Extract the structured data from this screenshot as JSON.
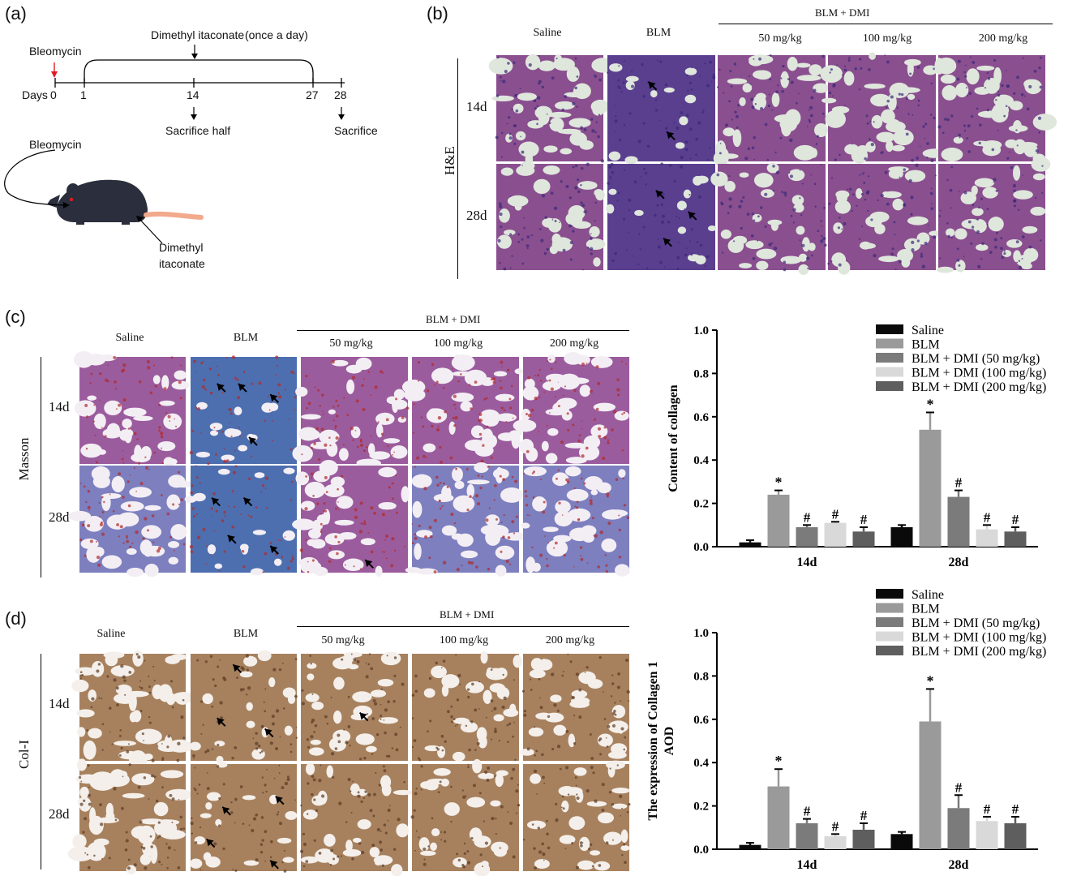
{
  "panel_a": {
    "letter": "(a)",
    "bleomycin_top": "Bleomycin",
    "dmi_label": "Dimethyl itaconate",
    "once_a_day": "(once a day)",
    "days_label": "Days",
    "ticks": [
      "0",
      "1",
      "14",
      "27",
      "28"
    ],
    "sacrifice_half": "Sacrifice half",
    "sacrifice": "Sacrifice",
    "bleomycin_mouse": "Bleomycin",
    "dmi_mouse_line1": "Dimethyl",
    "dmi_mouse_line2": "itaconate"
  },
  "panel_b": {
    "letter": "(b)",
    "group_header": "BLM + DMI",
    "columns": [
      "Saline",
      "BLM",
      "50 mg/kg",
      "100 mg/kg",
      "200 mg/kg"
    ],
    "rows": [
      "14d",
      "28d"
    ],
    "stain": "H&E"
  },
  "panel_c": {
    "letter": "(c)",
    "group_header": "BLM + DMI",
    "columns": [
      "Saline",
      "BLM",
      "50 mg/kg",
      "100 mg/kg",
      "200 mg/kg"
    ],
    "rows": [
      "14d",
      "28d"
    ],
    "stain": "Masson"
  },
  "panel_d": {
    "letter": "(d)",
    "group_header": "BLM + DMI",
    "columns": [
      "Saline",
      "BLM",
      "50 mg/kg",
      "100 mg/kg",
      "200 mg/kg"
    ],
    "rows": [
      "14d",
      "28d"
    ],
    "stain": "Col-I"
  },
  "colors": {
    "he_bg": "#dfe6dc",
    "he_tissue": "#8a4f8f",
    "he_dense": "#5a3f8f",
    "masson_bg": "#f3eef4",
    "masson_tissue": "#9b5c9e",
    "masson_blue": "#4d6fb0",
    "col_bg": "#f4efea",
    "col_tissue": "#a7815e",
    "series": [
      "#0a0a0a",
      "#9a9a9a",
      "#7b7b7b",
      "#d9d9d9",
      "#5e5e5e"
    ]
  },
  "chart_data": [
    {
      "type": "bar",
      "ylabel": "Content of collagen",
      "categories": [
        "14d",
        "28d"
      ],
      "ylim": [
        0,
        1.0
      ],
      "yticks": [
        "0.0",
        "0.2",
        "0.4",
        "0.6",
        "0.8",
        "1.0"
      ],
      "legend_position": "top-right",
      "series": [
        {
          "name": "Saline",
          "values": [
            0.02,
            0.09
          ],
          "errors": [
            0.01,
            0.01
          ],
          "marks": [
            "",
            ""
          ]
        },
        {
          "name": "BLM",
          "values": [
            0.24,
            0.54
          ],
          "errors": [
            0.02,
            0.08
          ],
          "marks": [
            "*",
            "*"
          ]
        },
        {
          "name": "BLM + DMI (50 mg/kg)",
          "values": [
            0.09,
            0.23
          ],
          "errors": [
            0.01,
            0.03
          ],
          "marks": [
            "#",
            "#"
          ]
        },
        {
          "name": "BLM + DMI (100 mg/kg)",
          "values": [
            0.11,
            0.08
          ],
          "errors": [
            0.005,
            0.02
          ],
          "marks": [
            "#",
            "#"
          ]
        },
        {
          "name": "BLM + DMI (200 mg/kg)",
          "values": [
            0.07,
            0.07
          ],
          "errors": [
            0.02,
            0.02
          ],
          "marks": [
            "#",
            "#"
          ]
        }
      ]
    },
    {
      "type": "bar",
      "ylabel": "The expression of Collagen 1",
      "ylabel2": "AOD",
      "categories": [
        "14d",
        "28d"
      ],
      "ylim": [
        0,
        1.0
      ],
      "yticks": [
        "0.0",
        "0.2",
        "0.4",
        "0.6",
        "0.8",
        "1.0"
      ],
      "legend_position": "top-right",
      "series": [
        {
          "name": "Saline",
          "values": [
            0.02,
            0.07
          ],
          "errors": [
            0.01,
            0.01
          ],
          "marks": [
            "",
            ""
          ]
        },
        {
          "name": "BLM",
          "values": [
            0.29,
            0.59
          ],
          "errors": [
            0.08,
            0.15
          ],
          "marks": [
            "*",
            "*"
          ]
        },
        {
          "name": "BLM + DMI (50 mg/kg)",
          "values": [
            0.12,
            0.19
          ],
          "errors": [
            0.02,
            0.06
          ],
          "marks": [
            "#",
            "#"
          ]
        },
        {
          "name": "BLM + DMI (100 mg/kg)",
          "values": [
            0.06,
            0.13
          ],
          "errors": [
            0.01,
            0.02
          ],
          "marks": [
            "#",
            "#"
          ]
        },
        {
          "name": "BLM + DMI (200 mg/kg)",
          "values": [
            0.09,
            0.12
          ],
          "errors": [
            0.03,
            0.03
          ],
          "marks": [
            "#",
            "#"
          ]
        }
      ]
    }
  ]
}
